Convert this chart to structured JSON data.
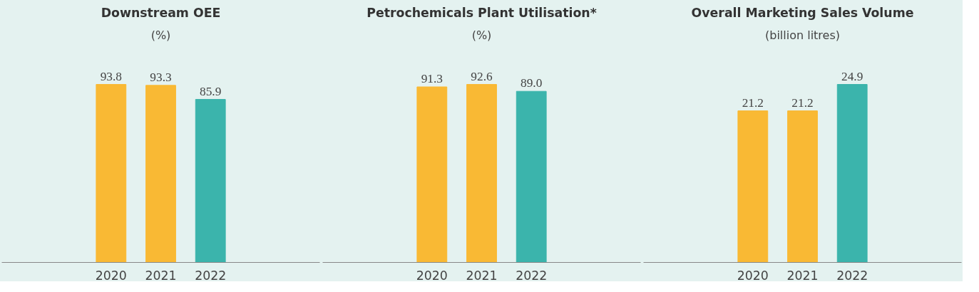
{
  "chart_data": [
    {
      "type": "bar",
      "title": "Downstream OEE",
      "subtitle": "(%)",
      "categories": [
        "2020",
        "2021",
        "2022"
      ],
      "values": [
        93.8,
        93.3,
        85.9
      ],
      "colors": [
        "#f9b934",
        "#f9b934",
        "#3bb4ac"
      ],
      "data_labels": true
    },
    {
      "type": "bar",
      "title": "Petrochemicals Plant Utilisation*",
      "subtitle": "(%)",
      "categories": [
        "2020",
        "2021",
        "2022"
      ],
      "values": [
        91.3,
        92.6,
        89.0
      ],
      "value_labels": [
        "91.3",
        "92.6",
        "89.0"
      ],
      "colors": [
        "#f9b934",
        "#f9b934",
        "#3bb4ac"
      ]
    },
    {
      "type": "bar",
      "title": "Overall Marketing Sales Volume",
      "subtitle": "(billion litres)",
      "categories": [
        "2020",
        "2021",
        "2022"
      ],
      "values": [
        21.2,
        21.2,
        24.9
      ],
      "colors": [
        "#f9b934",
        "#f9b934",
        "#3bb4ac"
      ],
      "data_labels": true
    }
  ]
}
